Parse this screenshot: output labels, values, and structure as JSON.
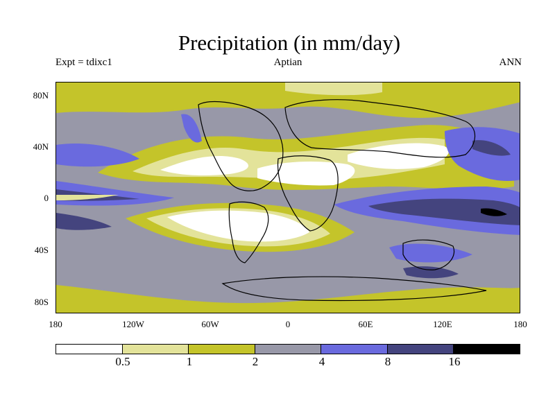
{
  "title": "Precipitation (in mm/day)",
  "experiment": "Expt = tdixc1",
  "period": "Aptian",
  "season": "ANN",
  "y_ticks": [
    "80N",
    "40N",
    "0",
    "40S",
    "80S"
  ],
  "x_ticks": [
    "180",
    "120W",
    "60W",
    "0",
    "60E",
    "120E",
    "180"
  ],
  "colorbar": {
    "levels": [
      "0.5",
      "1",
      "2",
      "4",
      "8",
      "16"
    ],
    "colors": [
      "#ffffff",
      "#e3e39a",
      "#c4c42a",
      "#9898a8",
      "#6a6ade",
      "#44447e",
      "#000000"
    ]
  }
}
